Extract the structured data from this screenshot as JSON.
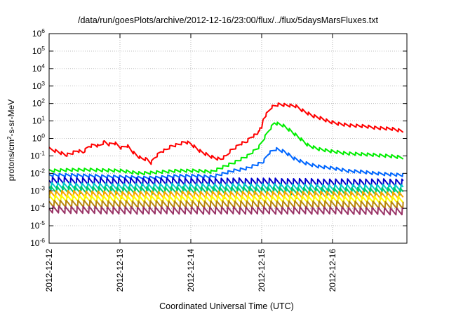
{
  "chart_data": {
    "type": "line",
    "title": "/data/run/goesPlots/archive/2012-12-16/23:00/flux/../flux/5daysMarsFluxes.txt",
    "xlabel": "Coordinated Universal Time (UTC)",
    "ylabel": {
      "main": "protons/cm",
      "sup": "2",
      "rest": "-s-sr-MeV"
    },
    "xlim": [
      0,
      5.05
    ],
    "x_ticks": [
      {
        "x": 0,
        "label": "2012-12-12"
      },
      {
        "x": 1,
        "label": "2012-12-13"
      },
      {
        "x": 2,
        "label": "2012-12-14"
      },
      {
        "x": 3,
        "label": "2012-12-15"
      },
      {
        "x": 4,
        "label": "2012-12-16"
      }
    ],
    "y_scale": "log",
    "ylim": [
      -6,
      6
    ],
    "y_ticks": [
      {
        "base": "10",
        "exp": "-6"
      },
      {
        "base": "10",
        "exp": "-5"
      },
      {
        "base": "10",
        "exp": "-4"
      },
      {
        "base": "10",
        "exp": "-3"
      },
      {
        "base": "10",
        "exp": "-2"
      },
      {
        "base": "10",
        "exp": "-1"
      },
      {
        "base": "10",
        "exp": "0"
      },
      {
        "base": "10",
        "exp": "1"
      },
      {
        "base": "10",
        "exp": "2"
      },
      {
        "base": "10",
        "exp": "3"
      },
      {
        "base": "10",
        "exp": "4"
      },
      {
        "base": "10",
        "exp": "5"
      },
      {
        "base": "10",
        "exp": "6"
      }
    ],
    "grid": true,
    "series": [
      {
        "color": "#ff0000",
        "log_values": [
          [
            0.0,
            -0.6
          ],
          [
            0.12,
            -0.75
          ],
          [
            0.24,
            -0.95
          ],
          [
            0.32,
            -0.85
          ],
          [
            0.4,
            -0.7
          ],
          [
            0.48,
            -0.8
          ],
          [
            0.56,
            -0.45
          ],
          [
            0.65,
            -0.35
          ],
          [
            0.7,
            -0.45
          ],
          [
            0.78,
            -0.2
          ],
          [
            0.85,
            -0.35
          ],
          [
            0.92,
            -0.25
          ],
          [
            1.02,
            -0.55
          ],
          [
            1.1,
            -0.4
          ],
          [
            1.2,
            -0.85
          ],
          [
            1.3,
            -1.15
          ],
          [
            1.38,
            -1.2
          ],
          [
            1.44,
            -1.4
          ],
          [
            1.48,
            -1.15
          ],
          [
            1.58,
            -0.75
          ],
          [
            1.65,
            -0.65
          ],
          [
            1.72,
            -0.45
          ],
          [
            1.82,
            -0.35
          ],
          [
            1.92,
            -0.2
          ],
          [
            2.0,
            -0.3
          ],
          [
            2.06,
            -0.5
          ],
          [
            2.14,
            -0.75
          ],
          [
            2.24,
            -0.95
          ],
          [
            2.32,
            -1.1
          ],
          [
            2.42,
            -1.2
          ],
          [
            2.5,
            -1.0
          ],
          [
            2.56,
            -0.7
          ],
          [
            2.62,
            -0.55
          ],
          [
            2.7,
            -0.3
          ],
          [
            2.78,
            -0.2
          ],
          [
            2.86,
            0.1
          ],
          [
            2.94,
            0.25
          ],
          [
            2.96,
            0.5
          ],
          [
            3.0,
            0.55
          ],
          [
            3.02,
            1.1
          ],
          [
            3.06,
            1.35
          ],
          [
            3.14,
            1.8
          ],
          [
            3.24,
            1.95
          ],
          [
            3.36,
            1.9
          ],
          [
            3.48,
            1.85
          ],
          [
            3.6,
            1.55
          ],
          [
            3.72,
            1.3
          ],
          [
            3.84,
            1.15
          ],
          [
            3.96,
            0.95
          ],
          [
            4.08,
            0.85
          ],
          [
            4.24,
            0.75
          ],
          [
            4.44,
            0.7
          ],
          [
            4.64,
            0.6
          ],
          [
            4.84,
            0.55
          ],
          [
            5.0,
            0.4
          ]
        ]
      },
      {
        "color": "#00ee00",
        "log_values": [
          [
            0.0,
            -1.85
          ],
          [
            0.3,
            -1.8
          ],
          [
            0.6,
            -1.8
          ],
          [
            1.0,
            -1.85
          ],
          [
            1.3,
            -2.0
          ],
          [
            1.5,
            -1.95
          ],
          [
            1.8,
            -1.85
          ],
          [
            2.1,
            -1.85
          ],
          [
            2.3,
            -1.9
          ],
          [
            2.6,
            -1.4
          ],
          [
            2.8,
            -1.0
          ],
          [
            2.96,
            -0.5
          ],
          [
            3.02,
            -0.1
          ],
          [
            3.1,
            0.45
          ],
          [
            3.18,
            0.9
          ],
          [
            3.3,
            0.75
          ],
          [
            3.42,
            0.4
          ],
          [
            3.54,
            0.0
          ],
          [
            3.66,
            -0.4
          ],
          [
            3.8,
            -0.6
          ],
          [
            4.0,
            -0.75
          ],
          [
            4.2,
            -0.85
          ],
          [
            4.4,
            -0.9
          ],
          [
            4.6,
            -0.95
          ],
          [
            4.8,
            -1.0
          ],
          [
            5.0,
            -1.1
          ]
        ]
      },
      {
        "color": "#0066ff",
        "log_values": [
          [
            0.0,
            -2.1
          ],
          [
            0.3,
            -2.1
          ],
          [
            0.6,
            -2.15
          ],
          [
            1.0,
            -2.2
          ],
          [
            1.3,
            -2.25
          ],
          [
            1.5,
            -2.25
          ],
          [
            1.8,
            -2.15
          ],
          [
            2.1,
            -2.15
          ],
          [
            2.3,
            -2.2
          ],
          [
            2.6,
            -1.85
          ],
          [
            2.8,
            -1.7
          ],
          [
            2.96,
            -1.45
          ],
          [
            3.02,
            -1.35
          ],
          [
            3.1,
            -0.85
          ],
          [
            3.2,
            -0.6
          ],
          [
            3.32,
            -0.75
          ],
          [
            3.46,
            -1.15
          ],
          [
            3.6,
            -1.4
          ],
          [
            3.8,
            -1.6
          ],
          [
            4.0,
            -1.7
          ],
          [
            4.2,
            -1.85
          ],
          [
            4.4,
            -1.9
          ],
          [
            4.6,
            -2.0
          ],
          [
            4.8,
            -2.05
          ],
          [
            5.0,
            -2.1
          ]
        ]
      },
      {
        "color": "#0000cc",
        "log_values": [
          [
            0.0,
            -2.55
          ],
          [
            1.0,
            -2.6
          ],
          [
            2.0,
            -2.6
          ],
          [
            3.0,
            -2.6
          ],
          [
            4.0,
            -2.65
          ],
          [
            5.0,
            -2.65
          ]
        ]
      },
      {
        "color": "#00cccc",
        "log_values": [
          [
            0.0,
            -2.85
          ],
          [
            1.0,
            -2.9
          ],
          [
            2.0,
            -2.9
          ],
          [
            3.0,
            -2.9
          ],
          [
            4.0,
            -2.95
          ],
          [
            5.0,
            -2.95
          ]
        ]
      },
      {
        "color": "#00cc66",
        "log_values": [
          [
            0.0,
            -3.05
          ],
          [
            1.0,
            -3.1
          ],
          [
            2.0,
            -3.1
          ],
          [
            3.0,
            -3.1
          ],
          [
            4.0,
            -3.15
          ],
          [
            5.0,
            -3.15
          ]
        ]
      },
      {
        "color": "#ffa500",
        "log_values": [
          [
            0.0,
            -3.3
          ],
          [
            1.0,
            -3.35
          ],
          [
            2.0,
            -3.35
          ],
          [
            3.0,
            -3.35
          ],
          [
            4.0,
            -3.35
          ],
          [
            5.0,
            -3.4
          ]
        ]
      },
      {
        "color": "#ffff00",
        "log_values": [
          [
            0.0,
            -3.55
          ],
          [
            1.0,
            -3.6
          ],
          [
            2.0,
            -3.6
          ],
          [
            3.0,
            -3.6
          ],
          [
            4.0,
            -3.6
          ],
          [
            5.0,
            -3.65
          ]
        ]
      },
      {
        "color": "#b8860b",
        "log_values": [
          [
            0.0,
            -3.85
          ],
          [
            1.0,
            -3.9
          ],
          [
            2.0,
            -3.9
          ],
          [
            3.0,
            -3.9
          ],
          [
            4.0,
            -3.9
          ],
          [
            5.0,
            -3.95
          ]
        ]
      },
      {
        "color": "#993366",
        "log_values": [
          [
            0.0,
            -4.2
          ],
          [
            1.0,
            -4.25
          ],
          [
            2.0,
            -4.25
          ],
          [
            3.0,
            -4.25
          ],
          [
            4.0,
            -4.25
          ],
          [
            5.0,
            -4.3
          ]
        ]
      }
    ]
  }
}
